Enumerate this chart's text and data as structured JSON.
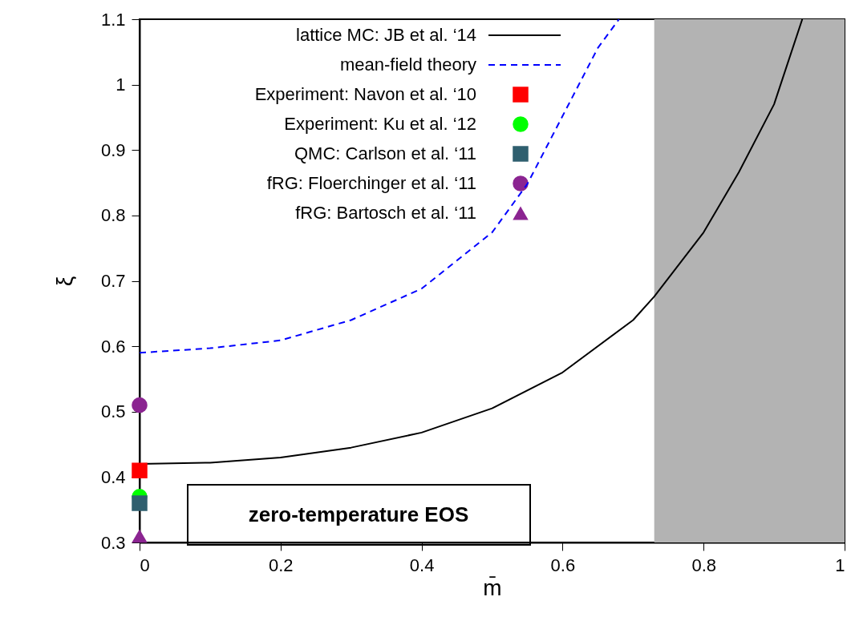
{
  "chart_data": {
    "type": "line",
    "xlabel": "m̄",
    "ylabel": "ξ",
    "xlim": [
      0,
      1
    ],
    "ylim": [
      0.3,
      1.1
    ],
    "xticks": [
      0,
      0.2,
      0.4,
      0.6,
      0.8,
      1
    ],
    "yticks": [
      0.3,
      0.4,
      0.5,
      0.6,
      0.7,
      0.8,
      0.9,
      1,
      1.1
    ],
    "grid": false,
    "legend": "top left",
    "series": [
      {
        "name": "lattice MC: JB et al. ‘14",
        "color": "#000000",
        "line_style": "solid",
        "x": [
          0,
          0.1,
          0.2,
          0.3,
          0.4,
          0.5,
          0.6,
          0.7,
          0.73,
          0.8,
          0.85,
          0.9,
          0.94
        ],
        "values": [
          0.42,
          0.422,
          0.43,
          0.445,
          0.468,
          0.505,
          0.56,
          0.64,
          0.676,
          0.774,
          0.866,
          0.97,
          1.1
        ]
      },
      {
        "name": "mean-field theory",
        "color": "#0000ff",
        "line_style": "dashed",
        "x": [
          0,
          0.1,
          0.2,
          0.3,
          0.4,
          0.5,
          0.55,
          0.6,
          0.65,
          0.68
        ],
        "values": [
          0.59,
          0.597,
          0.609,
          0.64,
          0.688,
          0.774,
          0.848,
          0.952,
          1.056,
          1.1
        ]
      },
      {
        "name": "Experiment: Navon et al. ‘10",
        "type": "scatter",
        "color": "#ff0000",
        "marker": "square",
        "x": [
          0
        ],
        "values": [
          0.41
        ]
      },
      {
        "name": "Experiment: Ku et al. ‘12",
        "type": "scatter",
        "color": "#00ff00",
        "marker": "circle",
        "x": [
          0
        ],
        "values": [
          0.37
        ]
      },
      {
        "name": "QMC: Carlson et al. ‘11",
        "type": "scatter",
        "color": "#2f5f6f",
        "marker": "square",
        "x": [
          0
        ],
        "values": [
          0.36
        ]
      },
      {
        "name": "fRG: Floerchinger et al. ‘11",
        "type": "scatter",
        "color": "#8b2491",
        "marker": "circle",
        "x": [
          0
        ],
        "values": [
          0.51
        ]
      },
      {
        "name": "fRG: Bartosch et al. ‘11",
        "type": "scatter",
        "color": "#8b2491",
        "marker": "triangle",
        "x": [
          0
        ],
        "values": [
          0.31
        ]
      }
    ],
    "bands": [
      {
        "axis": "x",
        "from": 0.73,
        "to": 1,
        "color": "#b3b3b3"
      }
    ],
    "annotations": [
      "zero-temperature EOS"
    ]
  }
}
